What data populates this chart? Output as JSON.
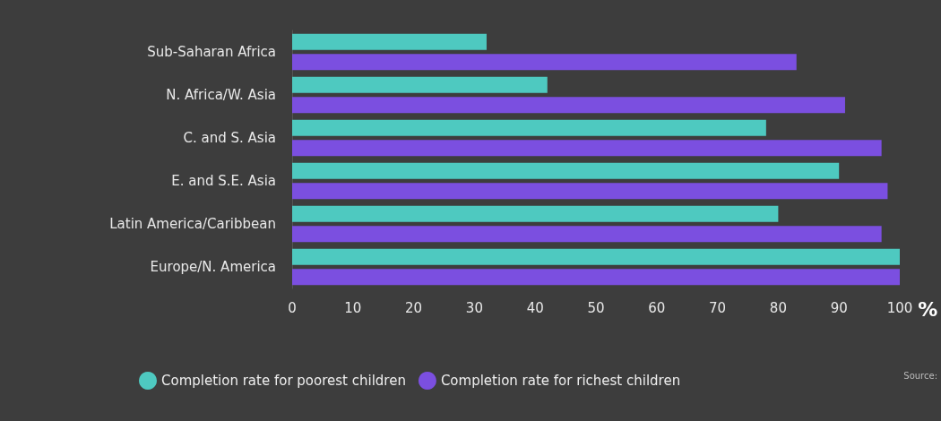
{
  "chart_data": {
    "type": "bar",
    "orientation": "horizontal",
    "xlabel": "%",
    "categories": [
      "Sub-Saharan Africa",
      "N. Africa/W. Asia",
      "C. and S. Asia",
      "E. and S.E. Asia",
      "Latin America/Caribbean",
      "Europe/N. America"
    ],
    "series": [
      {
        "name": "Completion rate for poorest children",
        "color": "#4ec9c0",
        "values": [
          32,
          42,
          78,
          90,
          80,
          100
        ]
      },
      {
        "name": "Completion rate for richest children",
        "color": "#7b4fe0",
        "values": [
          83,
          91,
          97,
          98,
          97,
          100
        ]
      }
    ],
    "xlim": [
      0,
      100
    ],
    "xticks": [
      0,
      10,
      20,
      30,
      40,
      50,
      60,
      70,
      80,
      90,
      100
    ],
    "grid": false,
    "legend": "bottom",
    "annotations": [
      "Source:"
    ]
  }
}
